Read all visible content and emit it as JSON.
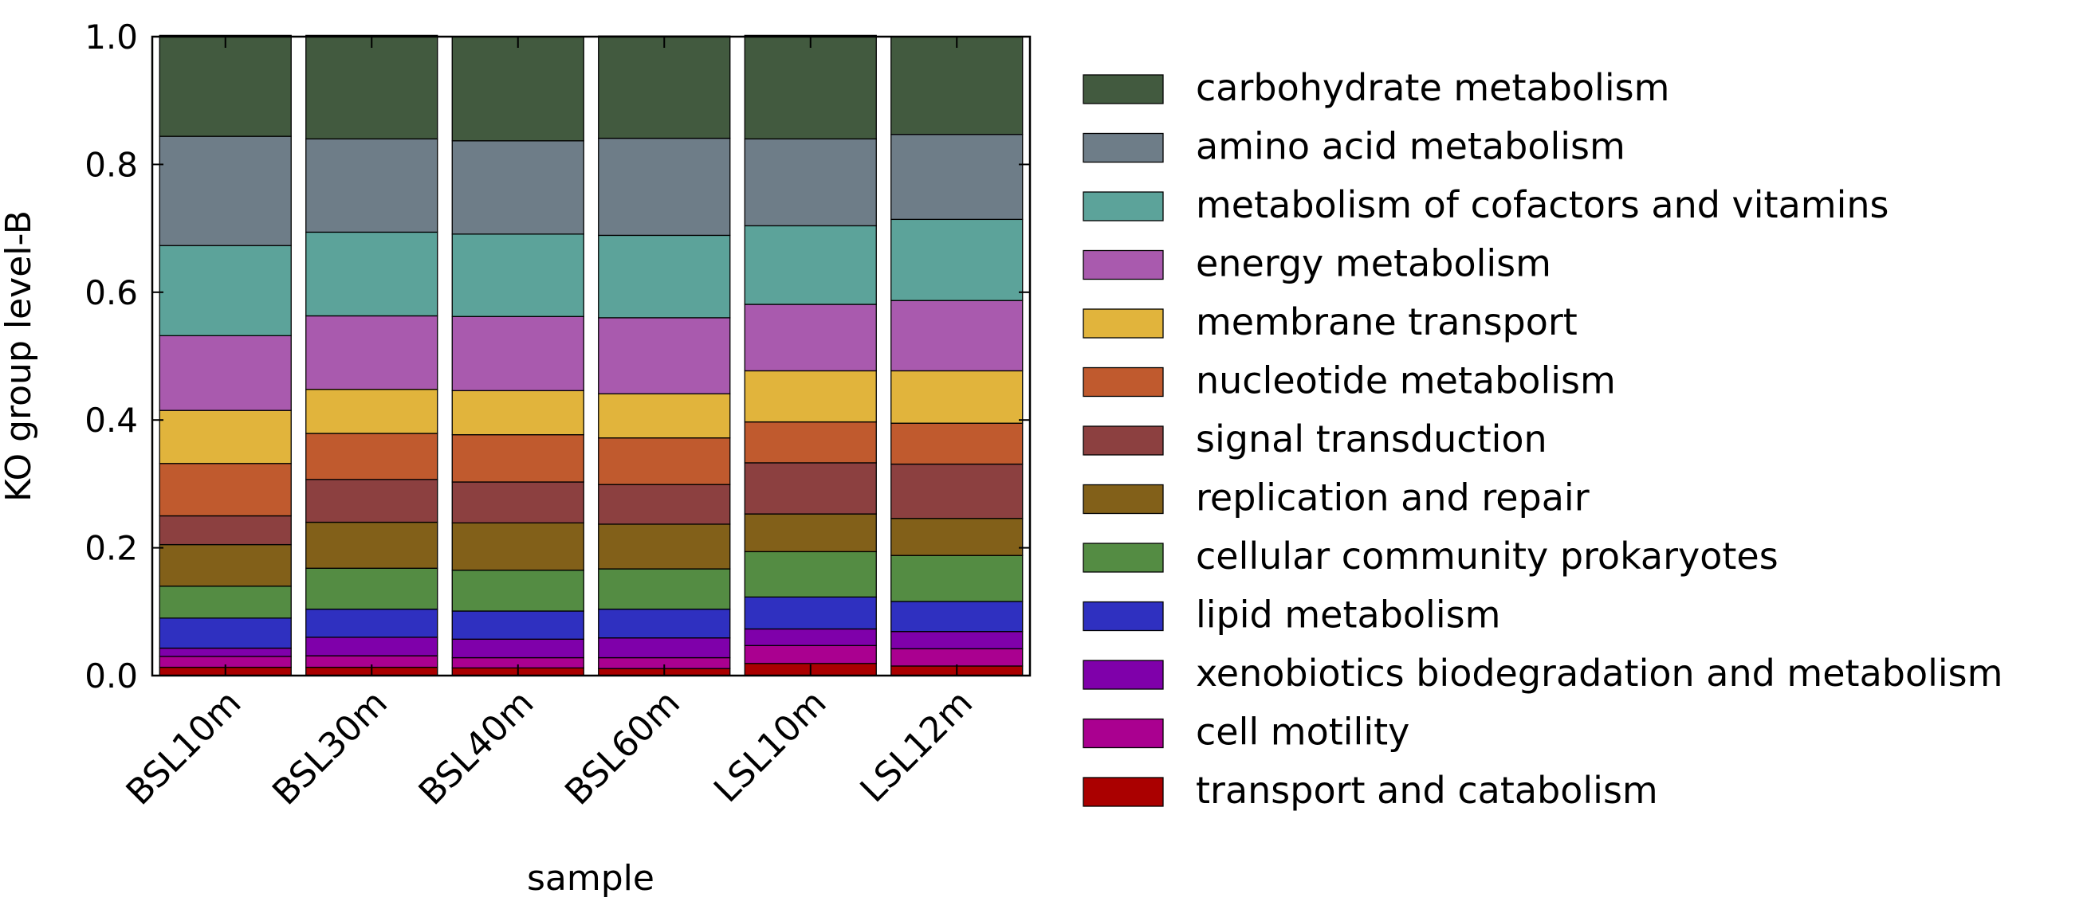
{
  "chart_data": {
    "type": "bar",
    "stacked": true,
    "categories": [
      "BSL10m",
      "BSL30m",
      "BSL40m",
      "BSL60m",
      "LSL10m",
      "LSL12m"
    ],
    "xlabel": "sample",
    "ylabel": "KO group level-B",
    "ylim": [
      0,
      1.0
    ],
    "yticks": [
      "0.0",
      "0.2",
      "0.4",
      "0.6",
      "0.8",
      "1.0"
    ],
    "legend_position": "right",
    "series": [
      {
        "name": "transport and catabolism",
        "color": "#aa0000",
        "values": [
          0.013,
          0.013,
          0.012,
          0.011,
          0.019,
          0.015
        ]
      },
      {
        "name": "cell motility",
        "color": "#aa0090",
        "values": [
          0.017,
          0.018,
          0.016,
          0.017,
          0.028,
          0.027
        ]
      },
      {
        "name": "xenobiotics biodegradation and metabolism",
        "color": "#7f00aa",
        "values": [
          0.013,
          0.029,
          0.029,
          0.031,
          0.026,
          0.027
        ]
      },
      {
        "name": "lipid metabolism",
        "color": "#2f30c0",
        "values": [
          0.047,
          0.044,
          0.044,
          0.045,
          0.05,
          0.047
        ]
      },
      {
        "name": "cellular community prokaryotes",
        "color": "#548c43",
        "values": [
          0.05,
          0.064,
          0.064,
          0.063,
          0.071,
          0.072
        ]
      },
      {
        "name": "replication and repair",
        "color": "#826019",
        "values": [
          0.065,
          0.072,
          0.074,
          0.07,
          0.059,
          0.058
        ]
      },
      {
        "name": "signal transduction",
        "color": "#8c4040",
        "values": [
          0.045,
          0.067,
          0.064,
          0.062,
          0.08,
          0.085
        ]
      },
      {
        "name": "nucleotide metabolism",
        "color": "#c05a2e",
        "values": [
          0.082,
          0.072,
          0.074,
          0.073,
          0.064,
          0.064
        ]
      },
      {
        "name": "membrane transport",
        "color": "#e1b43c",
        "values": [
          0.083,
          0.069,
          0.069,
          0.069,
          0.08,
          0.082
        ]
      },
      {
        "name": "energy metabolism",
        "color": "#a95aae",
        "values": [
          0.117,
          0.115,
          0.116,
          0.119,
          0.104,
          0.11
        ]
      },
      {
        "name": "metabolism of cofactors and vitamins",
        "color": "#5ca39a",
        "values": [
          0.141,
          0.131,
          0.129,
          0.129,
          0.123,
          0.127
        ]
      },
      {
        "name": "amino acid metabolism",
        "color": "#6e7d88",
        "values": [
          0.171,
          0.146,
          0.146,
          0.152,
          0.136,
          0.133
        ]
      },
      {
        "name": "carbohydrate metabolism",
        "color": "#425a3f",
        "values": [
          0.158,
          0.162,
          0.163,
          0.16,
          0.162,
          0.153
        ]
      }
    ]
  }
}
